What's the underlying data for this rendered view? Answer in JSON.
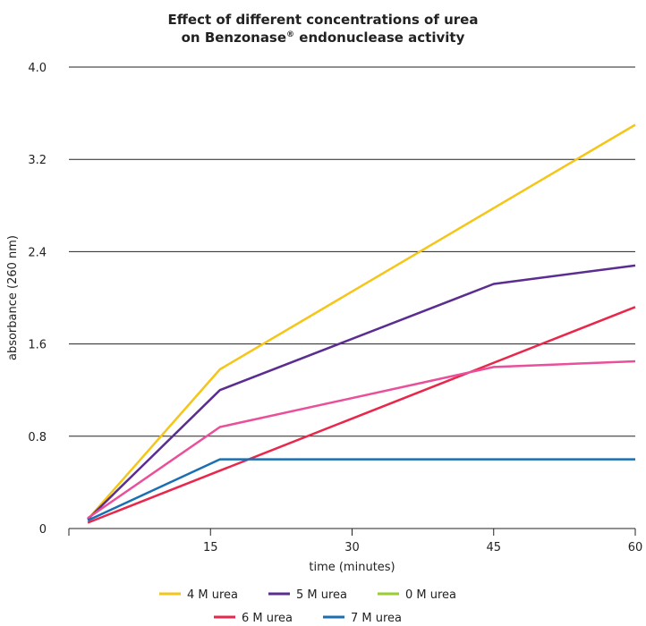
{
  "chart_data": {
    "type": "line",
    "title_line1": "Effect of different concentrations of urea",
    "title_line2_prefix": "on Benzonase",
    "title_line2_mark": "®",
    "title_line2_suffix": " endonuclease activity",
    "xlabel": "time (minutes)",
    "ylabel": "absorbance (260 nm)",
    "xlim": [
      0,
      60
    ],
    "ylim": [
      0,
      4.0
    ],
    "x_ticks": [
      15,
      30,
      45,
      60
    ],
    "x_tick_labels": [
      "15",
      "30",
      "45",
      "60"
    ],
    "y_ticks": [
      0,
      0.8,
      1.6,
      2.4,
      3.2,
      4.0
    ],
    "y_tick_labels": [
      "0",
      "0.8",
      "1.6",
      "2.4",
      "3.2",
      "4.0"
    ],
    "grid": "horizontal",
    "legend_position": "bottom",
    "series": [
      {
        "name": "4 M urea",
        "color": "#f5c518",
        "x": [
          2,
          16,
          60
        ],
        "y": [
          0.08,
          1.38,
          3.5
        ]
      },
      {
        "name": "5 M urea",
        "color": "#5b2d90",
        "x": [
          2,
          16,
          45,
          60
        ],
        "y": [
          0.08,
          1.2,
          2.12,
          2.28
        ]
      },
      {
        "name": "0 M urea",
        "color": "#9acd32",
        "x": [],
        "y": []
      },
      {
        "name": "6 M urea",
        "color": "#e8274b",
        "x": [
          2,
          60
        ],
        "y": [
          0.05,
          1.92
        ]
      },
      {
        "name": "7 M urea",
        "color": "#1a6fb3",
        "x": [
          2,
          16,
          60
        ],
        "y": [
          0.07,
          0.6,
          0.6
        ]
      },
      {
        "name": "",
        "color": "#ea4f9a",
        "x": [
          2,
          16,
          45,
          60
        ],
        "y": [
          0.09,
          0.88,
          1.4,
          1.45
        ]
      }
    ],
    "legend_order": [
      0,
      1,
      2,
      3,
      4
    ]
  }
}
